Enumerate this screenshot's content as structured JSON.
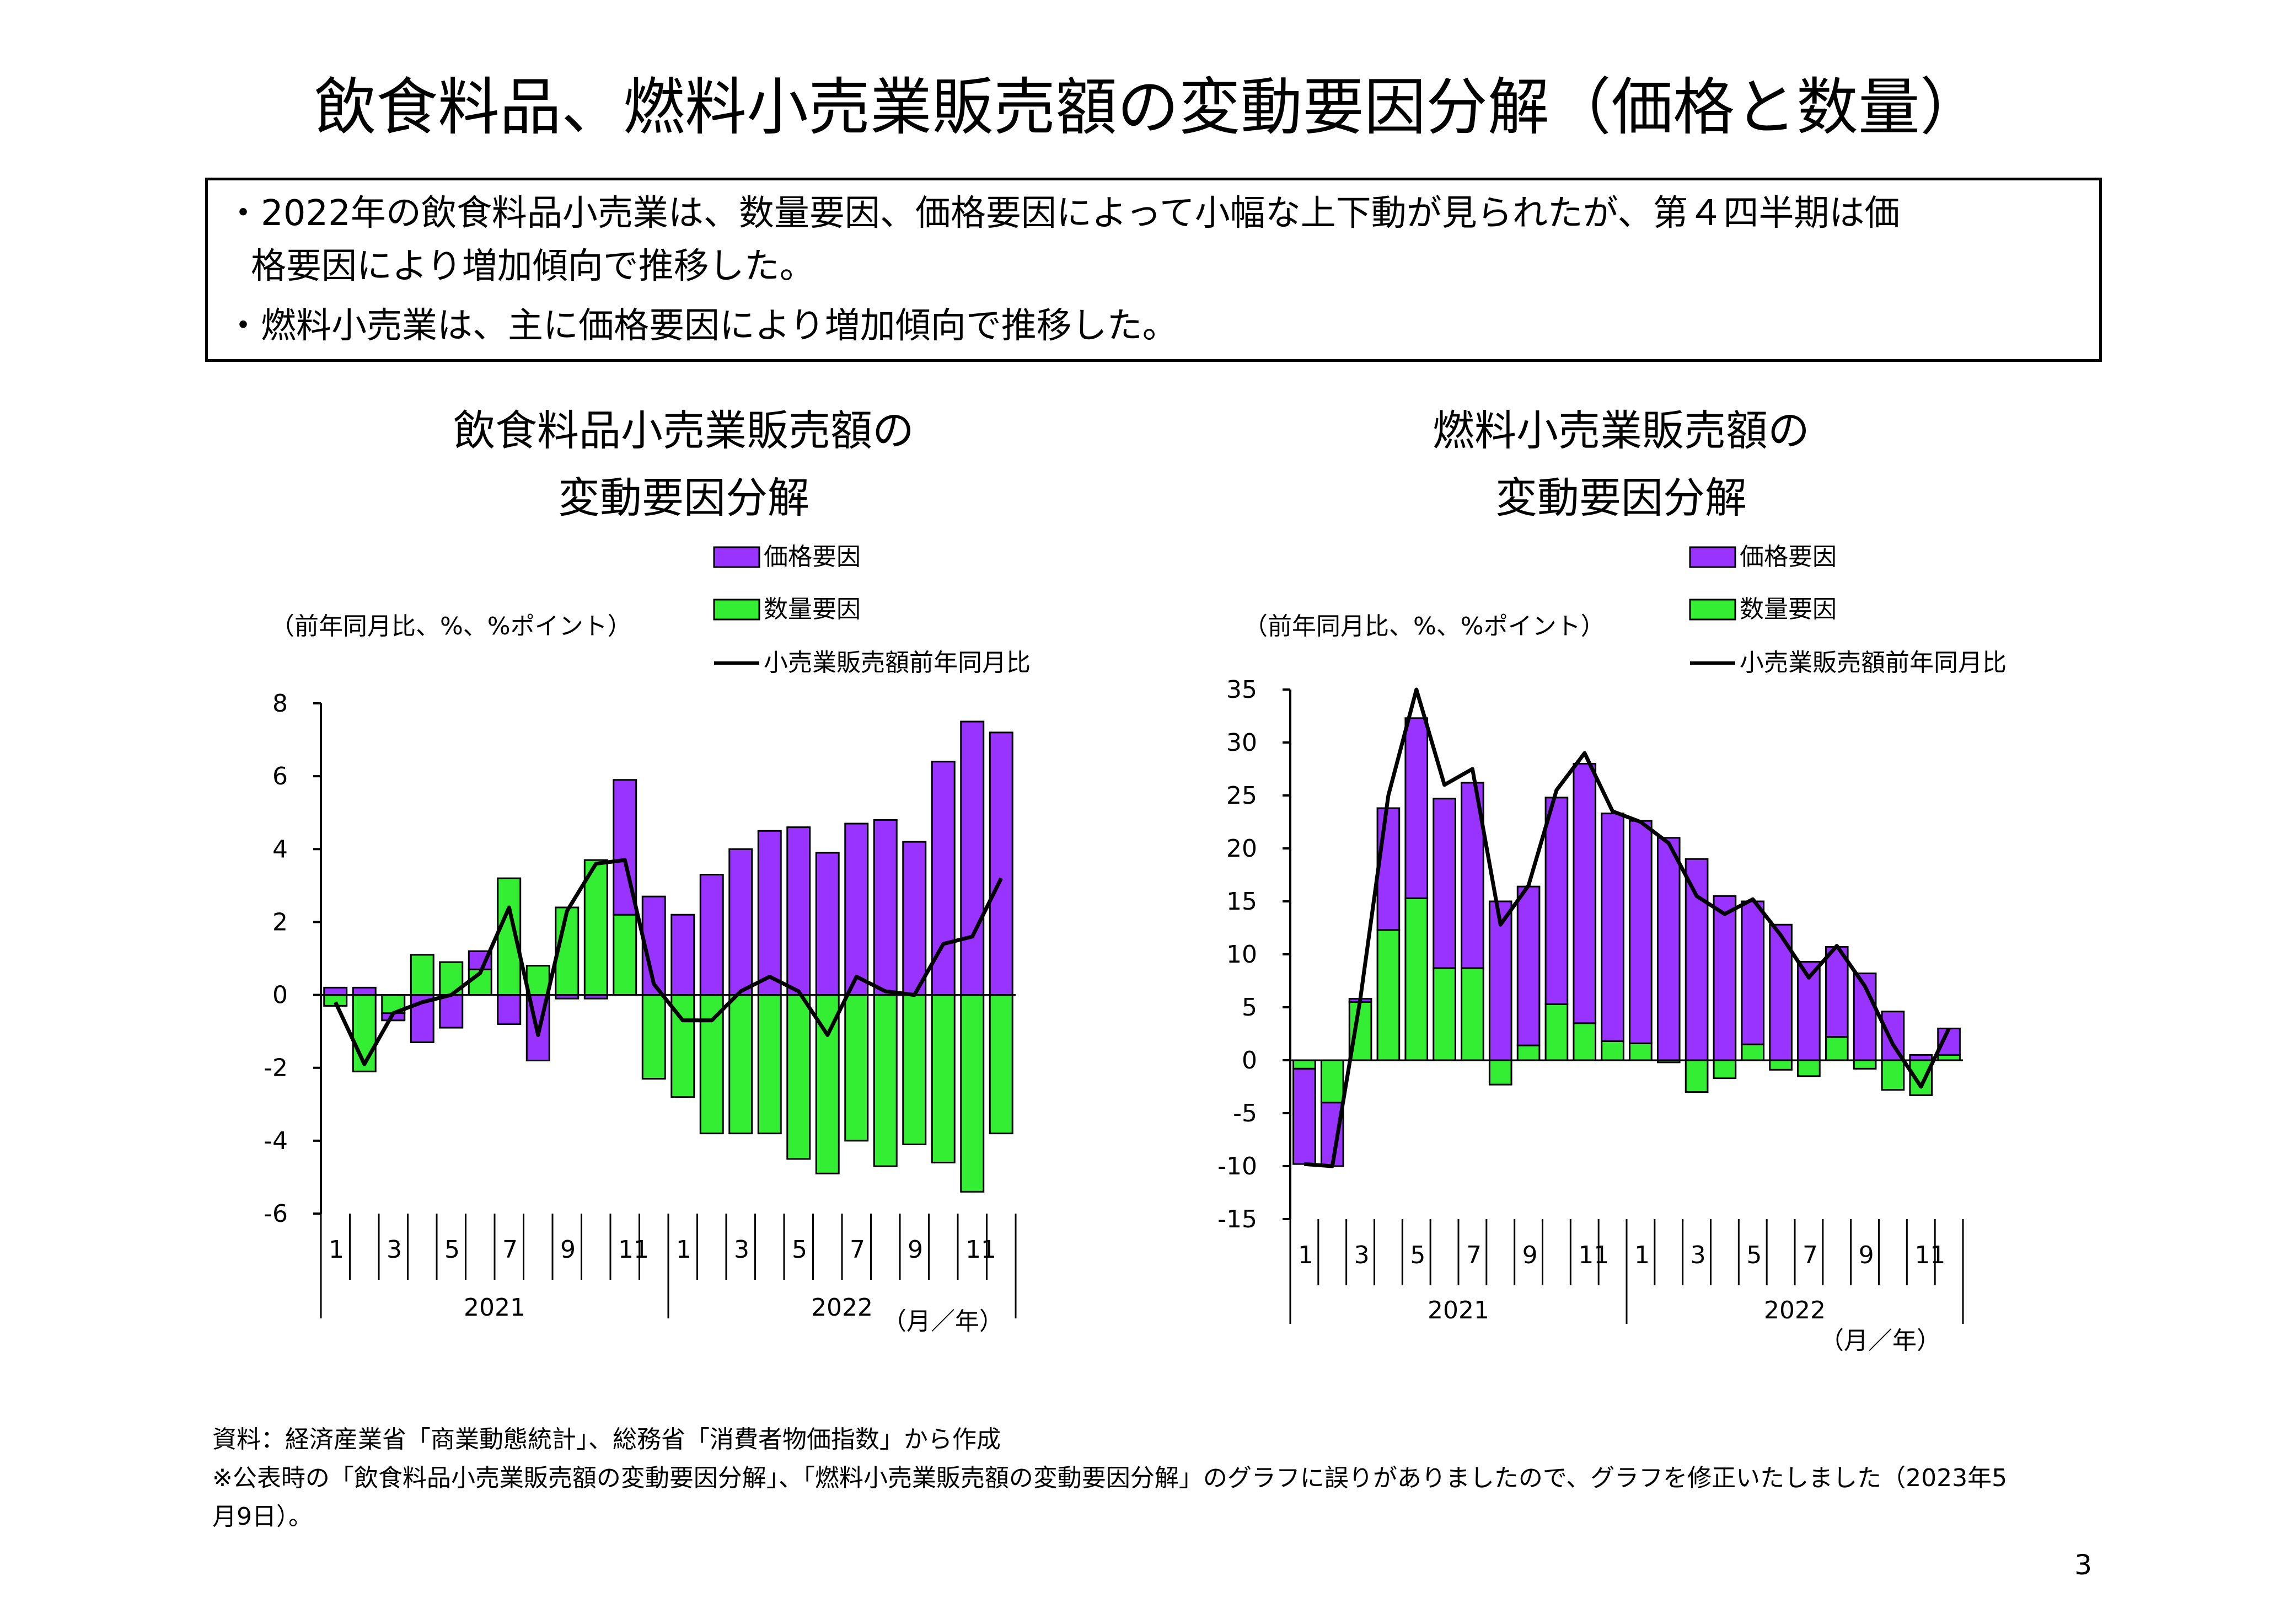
{
  "title": "飲食料品、燃料小売業販売額の変動要因分解（価格と数量）",
  "summary": {
    "line1": "・2022年の飲食料品小売業は、数量要因、価格要因によって小幅な上下動が見られたが、第４四半期は価",
    "line2": "格要因により増加傾向で推移した。",
    "line3": "・燃料小売業は、主に価格要因により増加傾向で推移した。"
  },
  "colors": {
    "price": "#9933FF",
    "quantity": "#33EE33",
    "line": "#000000"
  },
  "chart_data": [
    {
      "type": "bar",
      "title_line1": "飲食料品小売業販売額の",
      "title_line2": "変動要因分解",
      "unit_label": "（前年同月比、%、%ポイント）",
      "period_label": "（月／年）",
      "legend": {
        "price": "価格要因",
        "quantity": "数量要因",
        "line": "小売業販売額前年同月比"
      },
      "ylim": [
        -6,
        8
      ],
      "yticks": [
        8,
        6,
        4,
        2,
        0,
        -2,
        -4,
        -6
      ],
      "month_labels": [
        "1",
        "3",
        "5",
        "7",
        "9",
        "11",
        "1",
        "3",
        "5",
        "7",
        "9",
        "11"
      ],
      "years": [
        "2021",
        "2022"
      ],
      "series": [
        {
          "name": "価格要因",
          "values": [
            0.2,
            0.2,
            -0.2,
            -1.3,
            -0.9,
            0.5,
            -0.8,
            -1.8,
            -0.1,
            -0.1,
            3.7,
            2.7,
            2.2,
            3.3,
            4.0,
            4.5,
            4.6,
            3.9,
            4.7,
            4.8,
            4.2,
            6.4,
            7.5,
            7.2
          ]
        },
        {
          "name": "数量要因",
          "values": [
            -0.3,
            -2.1,
            -0.5,
            1.1,
            0.9,
            0.7,
            3.2,
            0.8,
            2.4,
            3.7,
            2.2,
            -2.3,
            -2.8,
            -3.8,
            -3.8,
            -3.8,
            -4.5,
            -4.9,
            -4.0,
            -4.7,
            -4.1,
            -4.6,
            -5.4,
            -3.8
          ]
        },
        {
          "name": "小売業販売額前年同月比",
          "values": [
            -0.2,
            -1.9,
            -0.5,
            -0.2,
            0.0,
            0.6,
            2.4,
            -1.1,
            2.3,
            3.6,
            3.7,
            0.3,
            -0.7,
            -0.7,
            0.1,
            0.5,
            0.1,
            -1.1,
            0.5,
            0.1,
            0.0,
            1.4,
            1.6,
            3.2
          ]
        }
      ]
    },
    {
      "type": "bar",
      "title_line1": "燃料小売業販売額の",
      "title_line2": "変動要因分解",
      "unit_label": "（前年同月比、%、%ポイント）",
      "period_label": "（月／年）",
      "legend": {
        "price": "価格要因",
        "quantity": "数量要因",
        "line": "小売業販売額前年同月比"
      },
      "ylim": [
        -15,
        35
      ],
      "yticks": [
        35,
        30,
        25,
        20,
        15,
        10,
        5,
        0,
        -5,
        -10,
        -15
      ],
      "month_labels": [
        "1",
        "3",
        "5",
        "7",
        "9",
        "11",
        "1",
        "3",
        "5",
        "7",
        "9",
        "11"
      ],
      "years": [
        "2021",
        "2022"
      ],
      "series": [
        {
          "name": "価格要因",
          "values": [
            -9.0,
            -6.0,
            0.3,
            11.5,
            17.0,
            16.0,
            17.5,
            15.0,
            15.0,
            19.5,
            24.5,
            21.5,
            21.0,
            21.0,
            19.0,
            15.5,
            13.5,
            12.8,
            9.3,
            8.5,
            8.2,
            4.6,
            0.5,
            2.5
          ]
        },
        {
          "name": "数量要因",
          "values": [
            -0.8,
            -4.0,
            5.5,
            12.3,
            15.3,
            8.7,
            8.7,
            -2.3,
            1.4,
            5.3,
            3.5,
            1.8,
            1.6,
            -0.2,
            -3.0,
            -1.7,
            1.5,
            -0.9,
            -1.5,
            2.2,
            -0.8,
            -2.8,
            -3.3,
            0.5
          ]
        },
        {
          "name": "小売業販売額前年同月比",
          "values": [
            -9.8,
            -10.0,
            5.8,
            25.0,
            35.0,
            26.0,
            27.5,
            12.8,
            16.5,
            25.5,
            29.0,
            23.5,
            22.5,
            20.5,
            15.5,
            13.8,
            15.2,
            11.8,
            7.8,
            10.8,
            7.0,
            1.5,
            -2.5,
            3.0
          ]
        }
      ]
    }
  ],
  "source_note": "資料：経済産業省「商業動態統計」、総務省「消費者物価指数」から作成",
  "correction_note_line1": "※公表時の「飲食料品小売業販売額の変動要因分解」、「燃料小売業販売額の変動要因分解」のグラフに誤りがありましたので、グラフを修正いたしました（2023年5",
  "correction_note_line2": "月9日）。",
  "page_number": "3"
}
